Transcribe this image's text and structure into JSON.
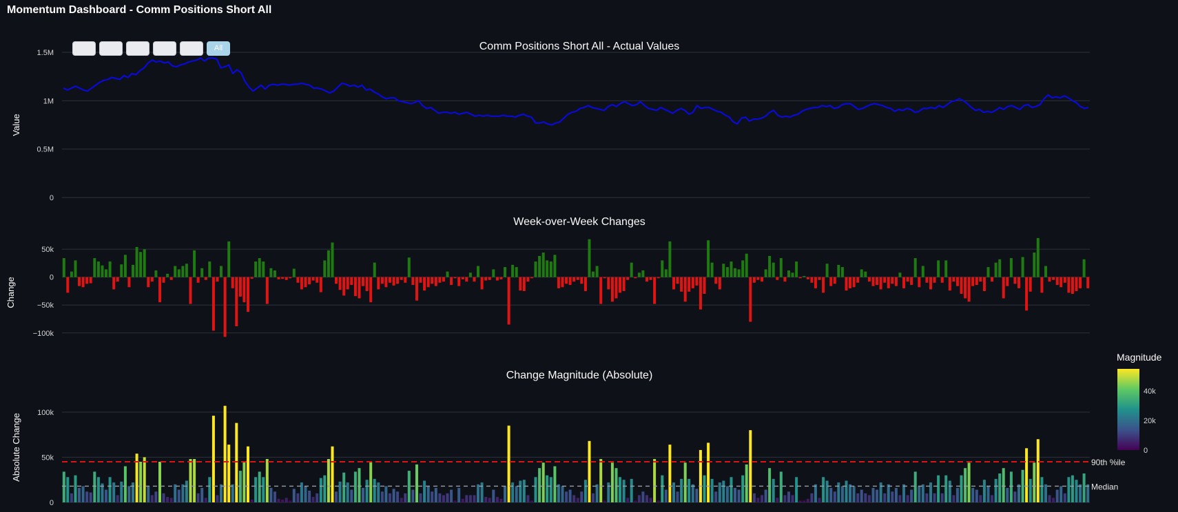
{
  "page": {
    "title": "Momentum Dashboard - Comm Positions Short All"
  },
  "range_selector": {
    "buttons": [
      "",
      "",
      "",
      "",
      "",
      "All"
    ],
    "active_index": 5
  },
  "colors": {
    "background": "#0e1117",
    "grid": "#2e323b",
    "line": "#0a0ad8",
    "positive": "#1f7a12",
    "negative": "#e11414",
    "threshold_90": "#e11414",
    "median": "#9aa0a6",
    "viridis": [
      "#440154",
      "#3b528b",
      "#21918c",
      "#5ec962",
      "#fde725"
    ]
  },
  "chart_data": [
    {
      "id": "actual",
      "type": "line",
      "title": "Comm Positions Short All - Actual Values",
      "ylabel": "Value",
      "ylim": [
        0,
        1500000
      ],
      "yticks": [
        {
          "v": 0,
          "label": "0"
        },
        {
          "v": 500000,
          "label": "0.5M"
        },
        {
          "v": 1000000,
          "label": "1M"
        },
        {
          "v": 1500000,
          "label": "1.5M"
        }
      ],
      "grid": true,
      "values": [
        1130000,
        1110000,
        1130000,
        1150000,
        1130000,
        1110000,
        1100000,
        1130000,
        1160000,
        1190000,
        1210000,
        1220000,
        1240000,
        1230000,
        1220000,
        1260000,
        1240000,
        1280000,
        1270000,
        1310000,
        1340000,
        1390000,
        1420000,
        1400000,
        1410000,
        1390000,
        1400000,
        1360000,
        1350000,
        1370000,
        1380000,
        1400000,
        1410000,
        1420000,
        1440000,
        1410000,
        1440000,
        1440000,
        1430000,
        1340000,
        1350000,
        1370000,
        1280000,
        1320000,
        1290000,
        1200000,
        1140000,
        1100000,
        1130000,
        1160000,
        1120000,
        1160000,
        1170000,
        1160000,
        1170000,
        1170000,
        1160000,
        1170000,
        1170000,
        1180000,
        1170000,
        1160000,
        1130000,
        1130000,
        1120000,
        1100000,
        1080000,
        1100000,
        1140000,
        1180000,
        1170000,
        1150000,
        1160000,
        1140000,
        1160000,
        1110000,
        1120000,
        1090000,
        1070000,
        1040000,
        1020000,
        1030000,
        1030000,
        1000000,
        990000,
        980000,
        970000,
        980000,
        1000000,
        950000,
        920000,
        930000,
        900000,
        870000,
        880000,
        880000,
        870000,
        880000,
        860000,
        870000,
        880000,
        860000,
        840000,
        850000,
        840000,
        850000,
        840000,
        840000,
        840000,
        850000,
        840000,
        840000,
        830000,
        850000,
        860000,
        840000,
        830000,
        770000,
        770000,
        780000,
        760000,
        750000,
        770000,
        780000,
        820000,
        860000,
        880000,
        890000,
        920000,
        930000,
        950000,
        930000,
        920000,
        910000,
        900000,
        940000,
        960000,
        940000,
        970000,
        990000,
        970000,
        950000,
        960000,
        990000,
        950000,
        920000,
        910000,
        900000,
        930000,
        910000,
        890000,
        870000,
        900000,
        920000,
        900000,
        860000,
        880000,
        950000,
        920000,
        930000,
        930000,
        910000,
        890000,
        880000,
        850000,
        830000,
        780000,
        760000,
        820000,
        830000,
        790000,
        810000,
        810000,
        820000,
        840000,
        880000,
        900000,
        850000,
        830000,
        840000,
        830000,
        850000,
        860000,
        890000,
        910000,
        920000,
        930000,
        930000,
        950000,
        940000,
        950000,
        920000,
        930000,
        960000,
        970000,
        970000,
        940000,
        910000,
        920000,
        940000,
        960000,
        970000,
        960000,
        950000,
        930000,
        920000,
        890000,
        910000,
        900000,
        920000,
        910000,
        880000,
        890000,
        920000,
        920000,
        930000,
        920000,
        950000,
        930000,
        960000,
        990000,
        1000000,
        1020000,
        1000000,
        970000,
        930000,
        900000,
        910000,
        880000,
        890000,
        880000,
        900000,
        930000,
        910000,
        940000,
        950000,
        930000,
        910000,
        950000,
        960000,
        930000,
        940000,
        960000,
        1020000,
        1060000,
        1030000,
        1040000,
        1030000,
        1050000,
        1030000,
        1000000,
        980000,
        940000,
        920000,
        930000
      ]
    },
    {
      "id": "wow",
      "type": "bar",
      "title": "Week-over-Week Changes",
      "ylabel": "Change",
      "ylim": [
        -120000,
        65000
      ],
      "yticks": [
        {
          "v": -100000,
          "label": "−100k"
        },
        {
          "v": -50000,
          "label": "−50k"
        },
        {
          "v": 0,
          "label": "0"
        },
        {
          "v": 50000,
          "label": "50k"
        }
      ],
      "grid": true,
      "values": [
        34000,
        -28000,
        10000,
        30000,
        -16000,
        -18000,
        -12000,
        -11000,
        34000,
        28000,
        21000,
        14000,
        28000,
        -22000,
        -8000,
        23000,
        40000,
        -18000,
        22000,
        54000,
        45000,
        50000,
        -18000,
        -8000,
        12000,
        -45000,
        -10000,
        6000,
        -5000,
        20000,
        14000,
        20000,
        24000,
        -48000,
        48000,
        -10000,
        16000,
        -5000,
        28000,
        -96000,
        -8000,
        20000,
        -107000,
        64000,
        -20000,
        -88000,
        -35000,
        -45000,
        -62000,
        -3000,
        28000,
        34000,
        28000,
        -48000,
        16000,
        12000,
        -4000,
        -3000,
        -5000,
        -2000,
        15000,
        -10000,
        -22000,
        -18000,
        -13000,
        -6000,
        -10000,
        -27000,
        30000,
        48000,
        62000,
        -12000,
        -23000,
        -33000,
        -22000,
        -14000,
        -34000,
        -38000,
        -16000,
        -25000,
        -45000,
        26000,
        -22000,
        -12000,
        -18000,
        -10000,
        -15000,
        -12000,
        -5000,
        -10000,
        35000,
        -14000,
        -42000,
        -10000,
        -24000,
        -18000,
        -12000,
        -16000,
        -10000,
        -8000,
        10000,
        -14000,
        -2000,
        -16000,
        -4000,
        -8000,
        8000,
        -8000,
        20000,
        -22000,
        -6000,
        -5000,
        14000,
        -6000,
        -4000,
        18000,
        -85000,
        22000,
        18000,
        -24000,
        -25000,
        -8000,
        -2000,
        28000,
        38000,
        44000,
        30000,
        28000,
        40000,
        -20000,
        -18000,
        -12000,
        -14000,
        -8000,
        -5000,
        -12000,
        -25000,
        68000,
        10000,
        20000,
        -48000,
        -2000,
        -22000,
        -44000,
        -38000,
        -28000,
        -25000,
        -5000,
        26000,
        -2000,
        8000,
        12000,
        -8000,
        -5000,
        -48000,
        -2000,
        30000,
        14000,
        64000,
        -22000,
        -12000,
        -26000,
        -44000,
        -26000,
        -20000,
        -15000,
        -58000,
        -30000,
        66000,
        26000,
        -12000,
        -22000,
        24000,
        18000,
        28000,
        16000,
        14000,
        30000,
        42000,
        -80000,
        -10000,
        -5000,
        -8000,
        14000,
        38000,
        26000,
        -5000,
        34000,
        -8000,
        12000,
        8000,
        28000,
        -2000,
        2000,
        -4000,
        -10000,
        -20000,
        -5000,
        -28000,
        24000,
        -16000,
        -12000,
        22000,
        18000,
        -24000,
        -20000,
        -18000,
        -10000,
        14000,
        10000,
        -8000,
        -16000,
        -14000,
        -22000,
        -10000,
        -20000,
        -12000,
        -16000,
        8000,
        -20000,
        -8000,
        -14000,
        34000,
        -18000,
        20000,
        -10000,
        -22000,
        -10000,
        30000,
        -10000,
        30000,
        -24000,
        -8000,
        -16000,
        -30000,
        -38000,
        -44000,
        -16000,
        -14000,
        -8000,
        -25000,
        18000,
        -8000,
        26000,
        32000,
        -38000,
        -16000,
        34000,
        -12000,
        -20000,
        36000,
        -60000,
        -26000,
        44000,
        70000,
        -28000,
        20000,
        -8000,
        -5000,
        -14000,
        -18000,
        -10000,
        -28000,
        -30000,
        -25000,
        -20000,
        32000,
        -20000
      ]
    },
    {
      "id": "magnitude",
      "type": "bar",
      "title": "Change Magnitude (Absolute)",
      "ylabel": "Absolute Change",
      "ylim": [
        0,
        122000
      ],
      "yticks": [
        {
          "v": 0,
          "label": "0"
        },
        {
          "v": 50000,
          "label": "50k"
        },
        {
          "v": 100000,
          "label": "100k"
        }
      ],
      "grid": true,
      "values_from": "abs(week-over-week)",
      "lines": [
        {
          "name": "90th %ile",
          "value": 45000,
          "style": "dash"
        },
        {
          "name": "Median",
          "value": 18000,
          "style": "dash"
        }
      ],
      "colorbar": {
        "title": "Magnitude",
        "range": [
          0,
          55000
        ],
        "ticks": [
          {
            "v": 0,
            "label": "0"
          },
          {
            "v": 20000,
            "label": "20k"
          },
          {
            "v": 40000,
            "label": "40k"
          }
        ]
      }
    }
  ]
}
